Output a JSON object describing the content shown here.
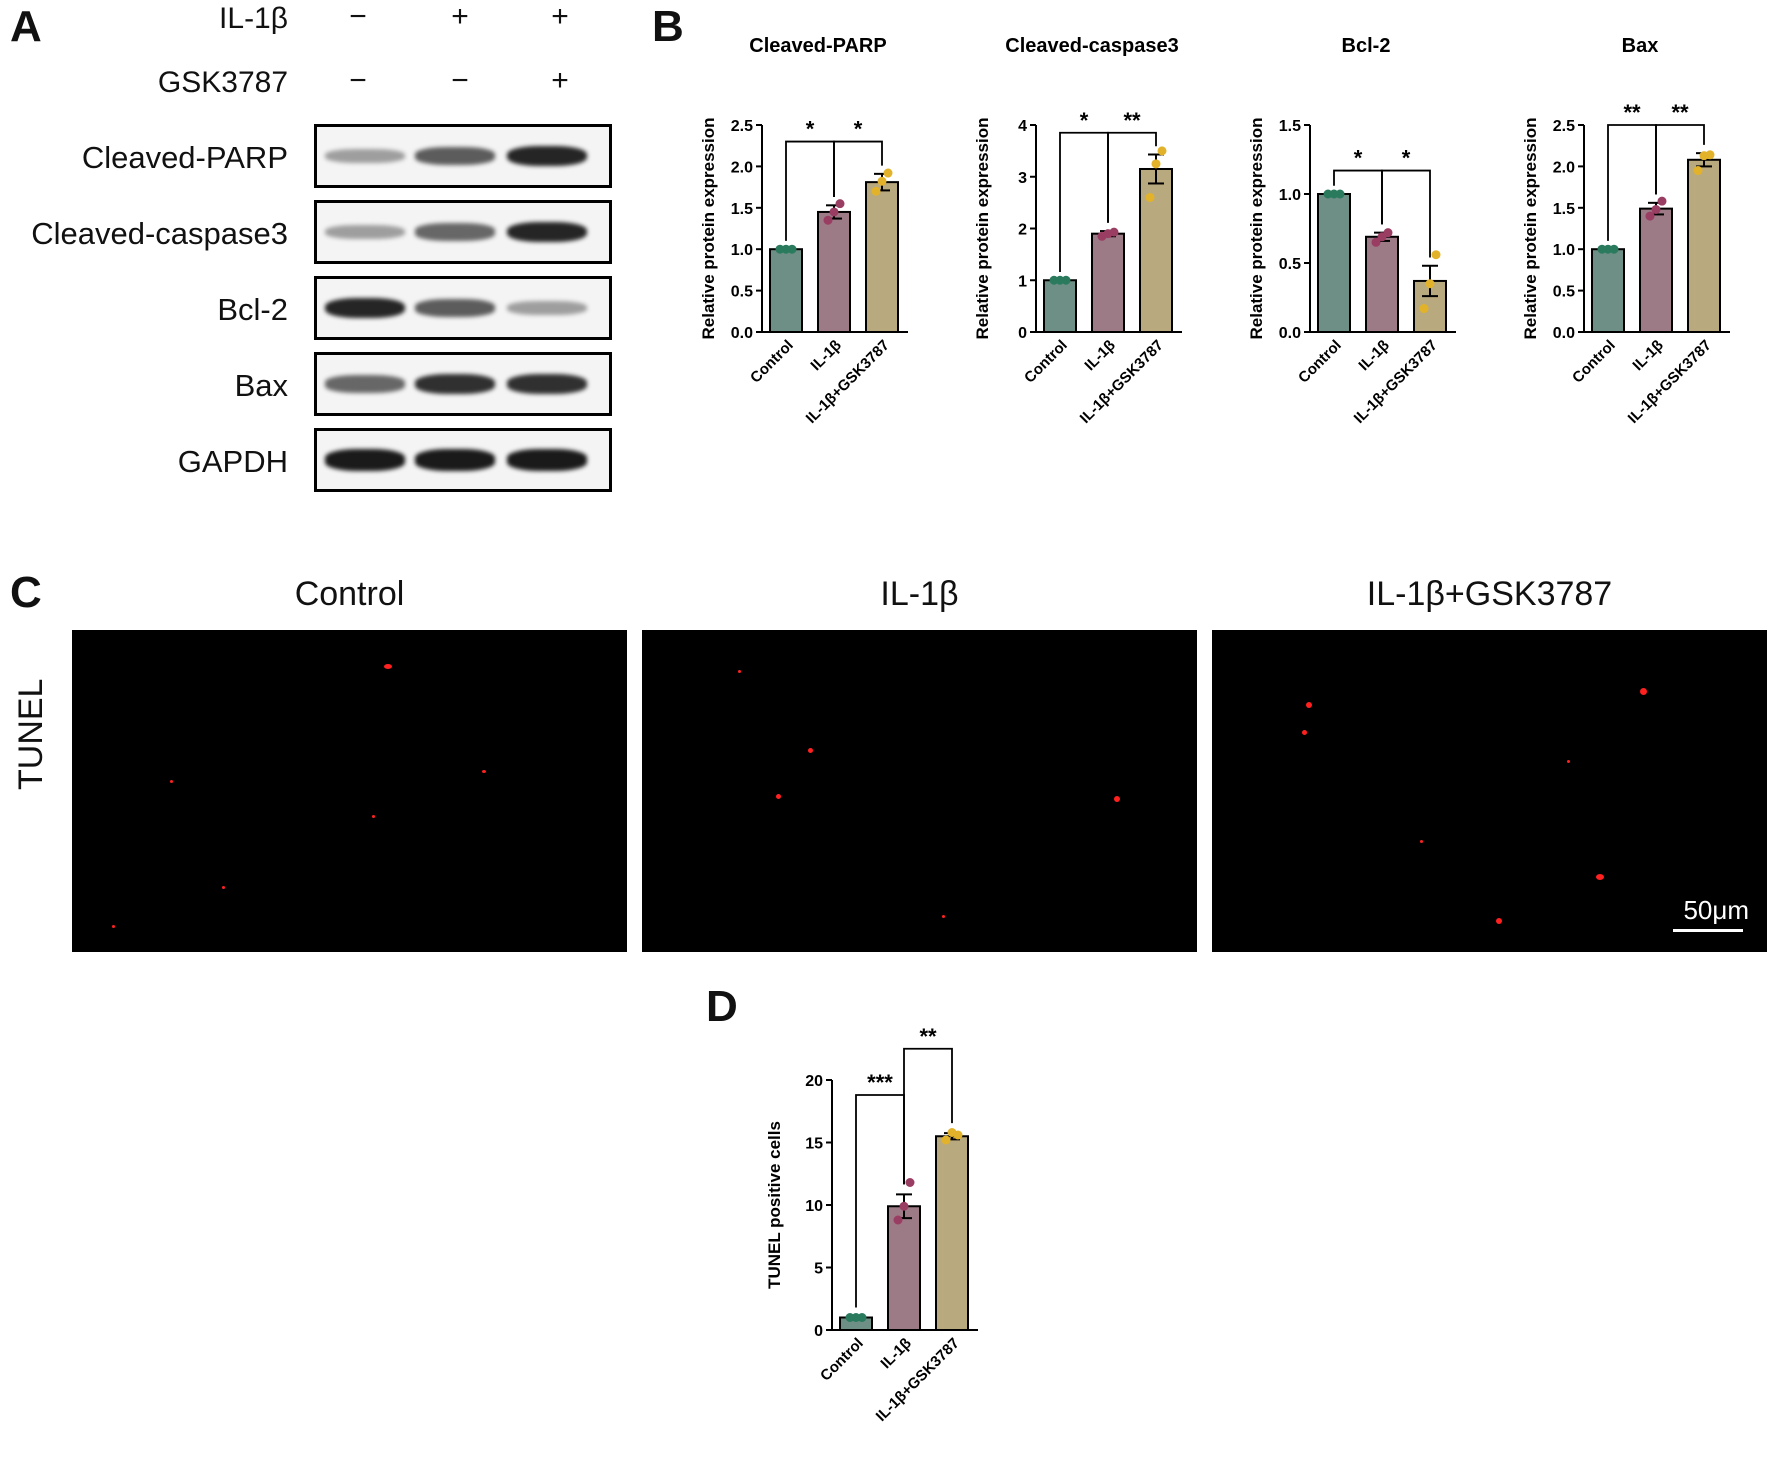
{
  "panels": {
    "a": "A",
    "b": "B",
    "c": "C",
    "d": "D"
  },
  "blot": {
    "treatments": [
      {
        "name": "IL-1β",
        "signs": [
          "−",
          "+",
          "+"
        ]
      },
      {
        "name": "GSK3787",
        "signs": [
          "−",
          "−",
          "+"
        ]
      }
    ],
    "proteins": [
      "Cleaved-PARP",
      "Cleaved-caspase3",
      "Bcl-2",
      "Bax",
      "GAPDH"
    ],
    "band_intensity": [
      [
        0.35,
        0.65,
        0.9
      ],
      [
        0.35,
        0.6,
        0.9
      ],
      [
        0.9,
        0.65,
        0.35
      ],
      [
        0.6,
        0.85,
        0.85
      ],
      [
        0.95,
        0.95,
        0.95
      ]
    ]
  },
  "tunel": {
    "row_label": "TUNEL",
    "titles": [
      "Control",
      "IL-1β",
      "IL-1β+GSK3787"
    ],
    "scale_bar": "50μm"
  },
  "colors": {
    "control": "#6e8f86",
    "il1b": "#9c7a86",
    "il1b_gsk": "#b9a97e",
    "dot_control": "#2a7a5e",
    "dot_il1b": "#9a3d63",
    "dot_gsk": "#e2b32a"
  },
  "chart_data": [
    {
      "type": "bar",
      "title": "Cleaved-PARP",
      "categories": [
        "Control",
        "IL-1β",
        "IL-1β+GSK3787"
      ],
      "values": [
        1.0,
        1.45,
        1.81
      ],
      "errors": [
        0.0,
        0.08,
        0.1
      ],
      "points": [
        [
          1.0,
          1.0,
          1.0
        ],
        [
          1.35,
          1.45,
          1.55
        ],
        [
          1.7,
          1.82,
          1.92
        ]
      ],
      "ylabel": "Relative protein expression",
      "ylim": [
        0,
        2.5
      ],
      "yticks": [
        "0.0",
        "0.5",
        "1.0",
        "1.5",
        "2.0",
        "2.5"
      ],
      "ytick_values": [
        0,
        0.5,
        1.0,
        1.5,
        2.0,
        2.5
      ],
      "significance": [
        {
          "from": 0,
          "to": 1,
          "label": "*",
          "level": 2.3
        },
        {
          "from": 1,
          "to": 2,
          "label": "*",
          "level": 2.3
        }
      ]
    },
    {
      "type": "bar",
      "title": "Cleaved-caspase3",
      "categories": [
        "Control",
        "IL-1β",
        "IL-1β+GSK3787"
      ],
      "values": [
        1.0,
        1.9,
        3.15
      ],
      "errors": [
        0.0,
        0.05,
        0.28
      ],
      "points": [
        [
          1.0,
          1.0,
          1.0
        ],
        [
          1.85,
          1.9,
          1.93
        ],
        [
          2.6,
          3.25,
          3.5
        ]
      ],
      "ylabel": "Relative protein expression",
      "ylim": [
        0,
        4
      ],
      "yticks": [
        "0",
        "1",
        "2",
        "3",
        "4"
      ],
      "ytick_values": [
        0,
        1,
        2,
        3,
        4
      ],
      "significance": [
        {
          "from": 0,
          "to": 1,
          "label": "*",
          "level": 3.85
        },
        {
          "from": 1,
          "to": 2,
          "label": "**",
          "level": 3.85
        }
      ]
    },
    {
      "type": "bar",
      "title": "Bcl-2",
      "categories": [
        "Control",
        "IL-1β",
        "IL-1β+GSK3787"
      ],
      "values": [
        1.0,
        0.69,
        0.37
      ],
      "errors": [
        0.0,
        0.03,
        0.11
      ],
      "points": [
        [
          1.0,
          1.0,
          1.0
        ],
        [
          0.65,
          0.69,
          0.72
        ],
        [
          0.17,
          0.35,
          0.56
        ]
      ],
      "ylabel": "Relative protein expression",
      "ylim": [
        0,
        1.5
      ],
      "yticks": [
        "0.0",
        "0.5",
        "1.0",
        "1.5"
      ],
      "ytick_values": [
        0,
        0.5,
        1.0,
        1.5
      ],
      "significance": [
        {
          "from": 0,
          "to": 1,
          "label": "*",
          "level": 1.17
        },
        {
          "from": 1,
          "to": 2,
          "label": "*",
          "level": 1.17
        }
      ]
    },
    {
      "type": "bar",
      "title": "Bax",
      "categories": [
        "Control",
        "IL-1β",
        "IL-1β+GSK3787"
      ],
      "values": [
        1.0,
        1.49,
        2.08
      ],
      "errors": [
        0.0,
        0.07,
        0.08
      ],
      "points": [
        [
          1.0,
          1.0,
          1.0
        ],
        [
          1.4,
          1.48,
          1.58
        ],
        [
          1.95,
          2.13,
          2.14
        ]
      ],
      "ylabel": "Relative protein expression",
      "ylim": [
        0,
        2.5
      ],
      "yticks": [
        "0.0",
        "0.5",
        "1.0",
        "1.5",
        "2.0",
        "2.5"
      ],
      "ytick_values": [
        0,
        0.5,
        1.0,
        1.5,
        2.0,
        2.5
      ],
      "significance": [
        {
          "from": 0,
          "to": 1,
          "label": "**",
          "level": 2.5
        },
        {
          "from": 1,
          "to": 2,
          "label": "**",
          "level": 2.5
        }
      ]
    },
    {
      "type": "bar",
      "title": "",
      "categories": [
        "Control",
        "IL-1β",
        "IL-1β+GSK3787"
      ],
      "values": [
        1.0,
        9.9,
        15.5
      ],
      "errors": [
        0.0,
        0.95,
        0.25
      ],
      "points": [
        [
          1.0,
          1.0,
          1.0
        ],
        [
          8.8,
          9.9,
          11.8
        ],
        [
          15.2,
          15.8,
          15.6
        ]
      ],
      "ylabel": "TUNEL positive cells",
      "ylim": [
        0,
        20
      ],
      "yticks": [
        "0",
        "5",
        "10",
        "15",
        "20"
      ],
      "ytick_values": [
        0,
        5,
        10,
        15,
        20
      ],
      "significance": [
        {
          "from": 0,
          "to": 1,
          "label": "***",
          "level": 18.8
        },
        {
          "from": 1,
          "to": 2,
          "label": "**",
          "level": 22.5
        }
      ]
    }
  ]
}
